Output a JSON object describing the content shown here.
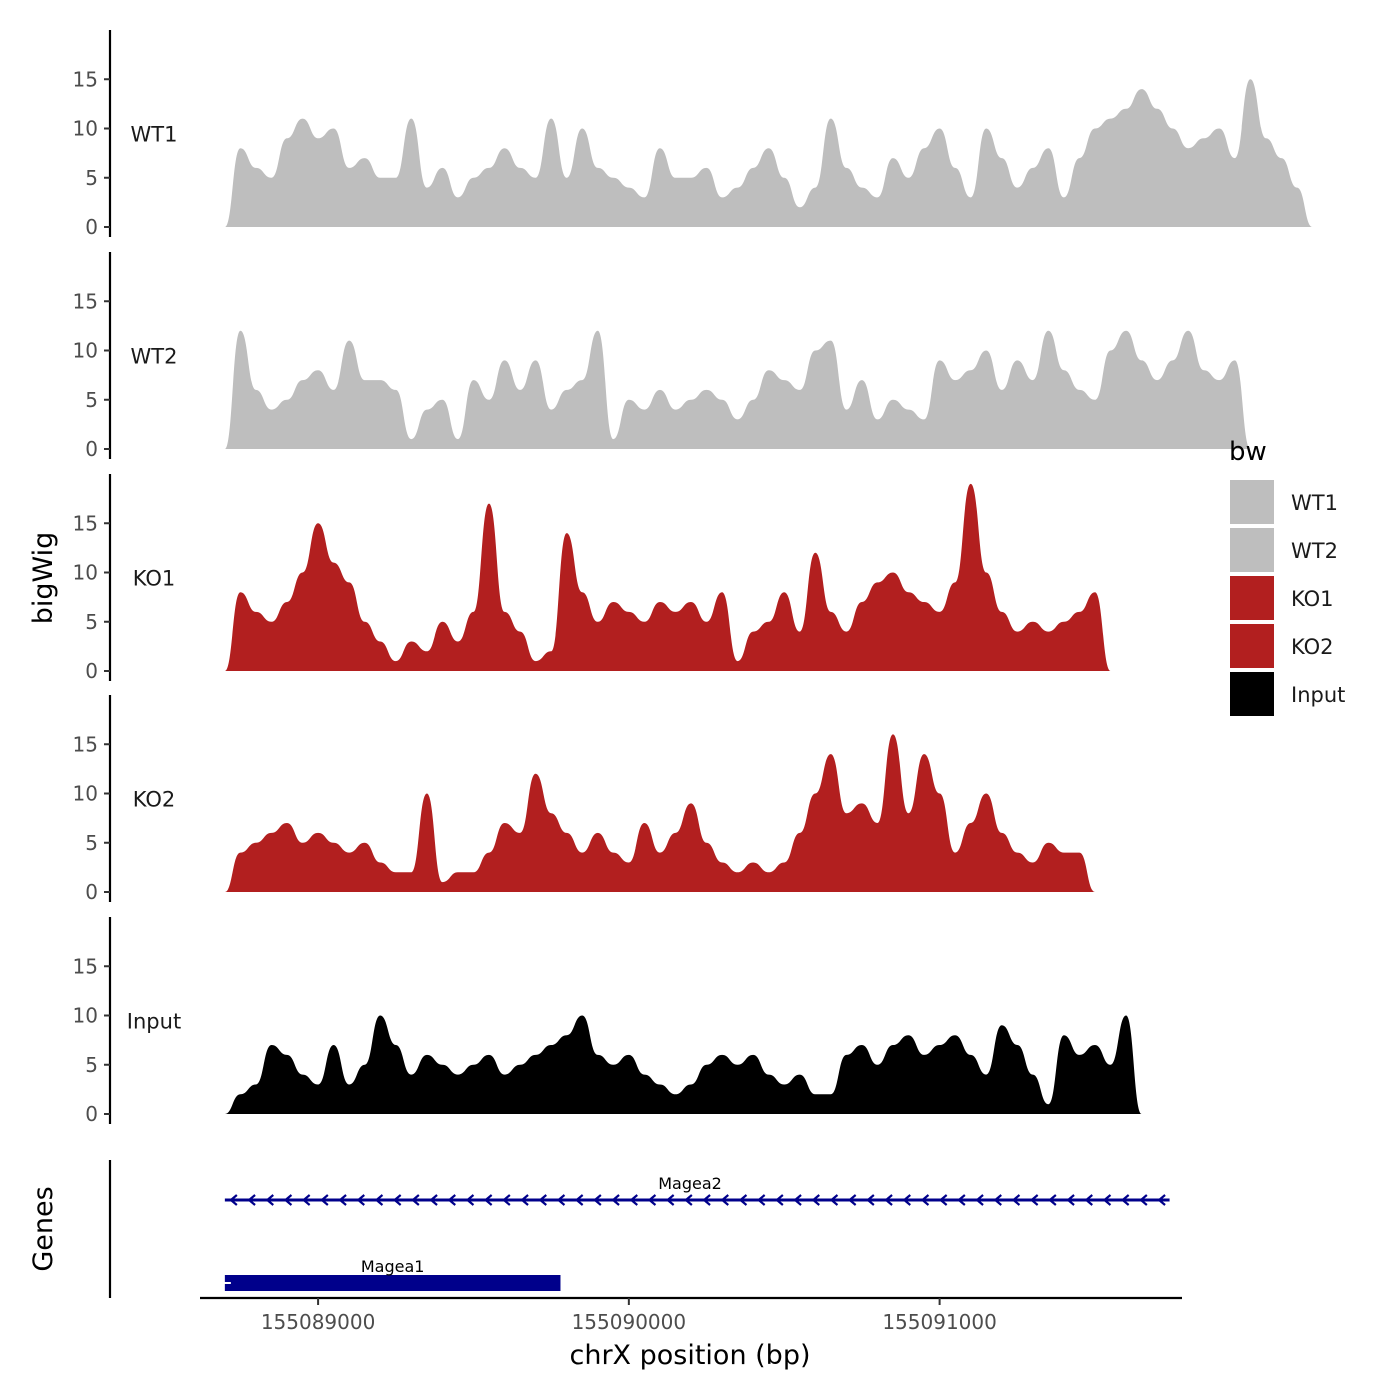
{
  "chart_data": {
    "type": "area",
    "ylabel": "bigWig",
    "xlabel": "chrX position (bp)",
    "gene_track_label": "Genes",
    "xlim": [
      155088620,
      155091780
    ],
    "ylim": [
      0,
      20
    ],
    "yticks": [
      0,
      5,
      10,
      15
    ],
    "yticks_text": [
      "0",
      "5",
      "10",
      "15"
    ],
    "xticks": [
      155089000,
      155090000,
      155091000
    ],
    "xticks_text": [
      "155089000",
      "155090000",
      "155091000"
    ],
    "legend": {
      "title": "bw",
      "position": "right",
      "entries": [
        {
          "label": "WT1",
          "color": "#bebebe"
        },
        {
          "label": "WT2",
          "color": "#bebebe"
        },
        {
          "label": "KO1",
          "color": "#b21f1f"
        },
        {
          "label": "KO2",
          "color": "#b21f1f"
        },
        {
          "label": "Input",
          "color": "#000000"
        }
      ]
    },
    "series": [
      {
        "name": "WT1",
        "color": "#bebebe",
        "x_start": 155088700,
        "x_step": 50,
        "values": [
          0,
          8,
          6,
          5,
          9,
          11,
          9,
          10,
          6,
          7,
          5,
          5,
          11,
          4,
          6,
          3,
          5,
          6,
          8,
          6,
          5,
          11,
          5,
          10,
          6,
          5,
          4,
          3,
          8,
          5,
          5,
          6,
          3,
          4,
          6,
          8,
          5,
          2,
          4,
          11,
          6,
          4,
          3,
          7,
          5,
          8,
          10,
          6,
          3,
          10,
          7,
          4,
          6,
          8,
          3,
          7,
          10,
          11,
          12,
          14,
          12,
          10,
          8,
          9,
          10,
          7,
          15,
          9,
          7,
          4,
          0
        ]
      },
      {
        "name": "WT2",
        "color": "#bebebe",
        "x_start": 155088700,
        "x_step": 50,
        "values": [
          0,
          12,
          6,
          4,
          5,
          7,
          8,
          6,
          11,
          7,
          7,
          6,
          1,
          4,
          5,
          1,
          7,
          5,
          9,
          6,
          9,
          4,
          6,
          7,
          12,
          1,
          5,
          4,
          6,
          4,
          5,
          6,
          5,
          3,
          5,
          8,
          7,
          6,
          10,
          11,
          4,
          7,
          3,
          5,
          4,
          3,
          9,
          7,
          8,
          10,
          6,
          9,
          7,
          12,
          8,
          6,
          5,
          10,
          12,
          9,
          7,
          9,
          12,
          8,
          7,
          9,
          0
        ]
      },
      {
        "name": "KO1",
        "color": "#b21f1f",
        "x_start": 155088700,
        "x_step": 50,
        "values": [
          0,
          8,
          6,
          5,
          7,
          10,
          15,
          11,
          9,
          5,
          3,
          1,
          3,
          2,
          5,
          3,
          6,
          17,
          6,
          4,
          1,
          2,
          14,
          8,
          5,
          7,
          6,
          5,
          7,
          6,
          7,
          5,
          8,
          1,
          4,
          5,
          8,
          4,
          12,
          6,
          4,
          7,
          9,
          10,
          8,
          7,
          6,
          9,
          19,
          10,
          6,
          4,
          5,
          4,
          5,
          6,
          8,
          0
        ]
      },
      {
        "name": "KO2",
        "color": "#b21f1f",
        "x_start": 155088700,
        "x_step": 50,
        "values": [
          0,
          4,
          5,
          6,
          7,
          5,
          6,
          5,
          4,
          5,
          3,
          2,
          2,
          10,
          1,
          2,
          2,
          4,
          7,
          6,
          12,
          8,
          6,
          4,
          6,
          4,
          3,
          7,
          4,
          6,
          9,
          5,
          3,
          2,
          3,
          2,
          3,
          6,
          10,
          14,
          8,
          9,
          7,
          16,
          8,
          14,
          10,
          4,
          7,
          10,
          6,
          4,
          3,
          5,
          4,
          4,
          0
        ]
      },
      {
        "name": "Input",
        "color": "#000000",
        "x_start": 155088700,
        "x_step": 50,
        "values": [
          0,
          2,
          3,
          7,
          6,
          4,
          3,
          7,
          3,
          5,
          10,
          7,
          4,
          6,
          5,
          4,
          5,
          6,
          4,
          5,
          6,
          7,
          8,
          10,
          6,
          5,
          6,
          4,
          3,
          2,
          3,
          5,
          6,
          5,
          6,
          4,
          3,
          4,
          2,
          2,
          6,
          7,
          5,
          7,
          8,
          6,
          7,
          8,
          6,
          4,
          9,
          7,
          4,
          1,
          8,
          6,
          7,
          5,
          10,
          0
        ]
      }
    ],
    "genes": [
      {
        "name": "Magea2",
        "start": 155088700,
        "end": 155091740,
        "strand": "-",
        "color": "#00008b"
      },
      {
        "name": "Magea1",
        "start": 155088700,
        "end": 155089780,
        "strand": "-",
        "color": "#00008b"
      }
    ]
  }
}
